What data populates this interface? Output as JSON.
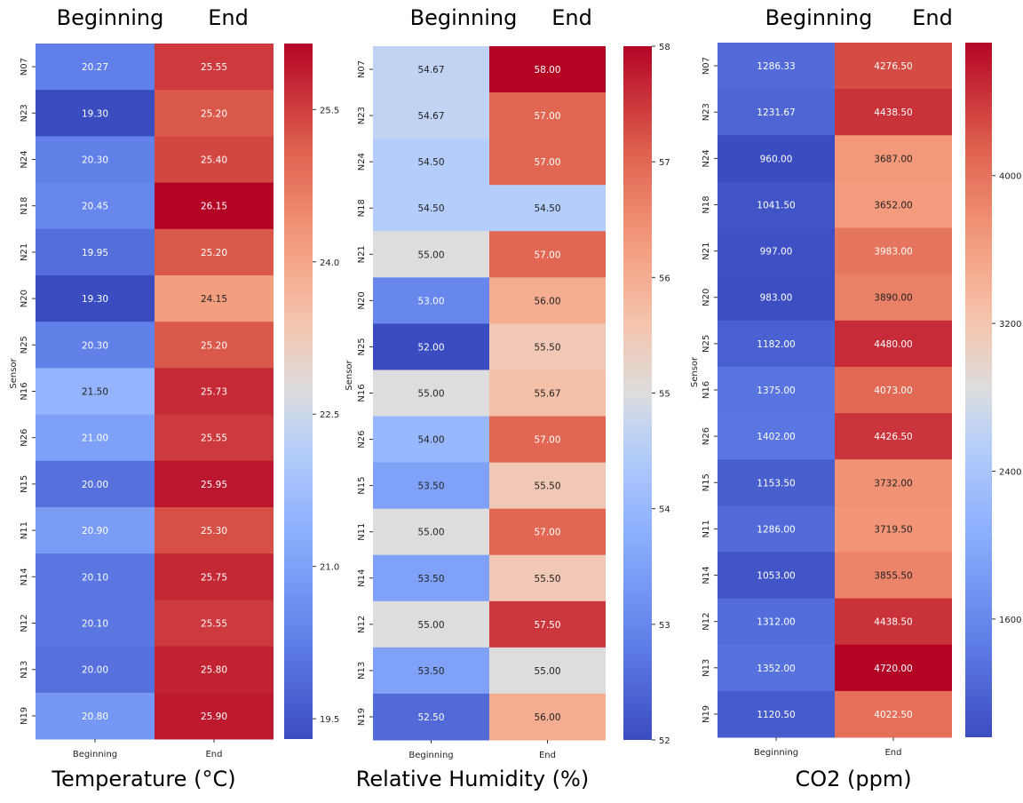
{
  "figure": {
    "columns": [
      "Beginning",
      "End"
    ],
    "axis_label": "Sensor",
    "panel_titles": [
      "Temperature (°C)",
      "Relative Humidity (%)",
      "CO2 (ppm)"
    ],
    "sensors": [
      "N07",
      "N23",
      "N24",
      "N18",
      "N21",
      "N20",
      "N25",
      "N16",
      "N26",
      "N15",
      "N11",
      "N14",
      "N12",
      "N13",
      "N19"
    ]
  },
  "chart_data": [
    {
      "type": "heatmap",
      "title": "Temperature (°C)",
      "xlabel": "",
      "ylabel": "Sensor",
      "x_categories": [
        "Beginning",
        "End"
      ],
      "y_categories": [
        "N07",
        "N23",
        "N24",
        "N18",
        "N21",
        "N20",
        "N25",
        "N16",
        "N26",
        "N15",
        "N11",
        "N14",
        "N12",
        "N13",
        "N19"
      ],
      "values": [
        [
          20.27,
          25.55
        ],
        [
          19.3,
          25.2
        ],
        [
          20.3,
          25.4
        ],
        [
          20.45,
          26.15
        ],
        [
          19.95,
          25.2
        ],
        [
          19.3,
          24.15
        ],
        [
          20.3,
          25.2
        ],
        [
          21.5,
          25.73
        ],
        [
          21.0,
          25.55
        ],
        [
          20.0,
          25.95
        ],
        [
          20.9,
          25.3
        ],
        [
          20.1,
          25.75
        ],
        [
          20.1,
          25.55
        ],
        [
          20.0,
          25.8
        ],
        [
          20.8,
          25.9
        ]
      ],
      "colorbar": {
        "min": 19.3,
        "max": 26.15,
        "ticks": [
          "19.5",
          "21.0",
          "22.5",
          "24.0",
          "25.5"
        ]
      },
      "colormap": "coolwarm",
      "annotation_format": "2dp"
    },
    {
      "type": "heatmap",
      "title": "Relative Humidity (%)",
      "xlabel": "",
      "ylabel": "Sensor",
      "x_categories": [
        "Beginning",
        "End"
      ],
      "y_categories": [
        "N07",
        "N23",
        "N24",
        "N18",
        "N21",
        "N20",
        "N25",
        "N16",
        "N26",
        "N15",
        "N11",
        "N14",
        "N12",
        "N13",
        "N19"
      ],
      "values": [
        [
          54.67,
          58.0
        ],
        [
          54.67,
          57.0
        ],
        [
          54.5,
          57.0
        ],
        [
          54.5,
          54.5
        ],
        [
          55.0,
          57.0
        ],
        [
          53.0,
          56.0
        ],
        [
          52.0,
          55.5
        ],
        [
          55.0,
          55.67
        ],
        [
          54.0,
          57.0
        ],
        [
          53.5,
          55.5
        ],
        [
          55.0,
          57.0
        ],
        [
          53.5,
          55.5
        ],
        [
          55.0,
          57.5
        ],
        [
          53.5,
          55.0
        ],
        [
          52.5,
          56.0
        ]
      ],
      "colorbar": {
        "min": 52,
        "max": 58,
        "ticks": [
          "52",
          "53",
          "54",
          "55",
          "56",
          "57",
          "58"
        ]
      },
      "colormap": "coolwarm",
      "annotation_format": "2dp"
    },
    {
      "type": "heatmap",
      "title": "CO2 (ppm)",
      "xlabel": "",
      "ylabel": "Sensor",
      "x_categories": [
        "Beginning",
        "End"
      ],
      "y_categories": [
        "N07",
        "N23",
        "N24",
        "N18",
        "N21",
        "N20",
        "N25",
        "N16",
        "N26",
        "N15",
        "N11",
        "N14",
        "N12",
        "N13",
        "N19"
      ],
      "values": [
        [
          1286.33,
          4276.5
        ],
        [
          1231.67,
          4438.5
        ],
        [
          960.0,
          3687.0
        ],
        [
          1041.5,
          3652.0
        ],
        [
          997.0,
          3983.0
        ],
        [
          983.0,
          3890.0
        ],
        [
          1182.0,
          4480.0
        ],
        [
          1375.0,
          4073.0
        ],
        [
          1402.0,
          4426.5
        ],
        [
          1153.5,
          3732.0
        ],
        [
          1286.0,
          3719.5
        ],
        [
          1053.0,
          3855.5
        ],
        [
          1312.0,
          4438.5
        ],
        [
          1352.0,
          4720.0
        ],
        [
          1120.5,
          4022.5
        ]
      ],
      "colorbar": {
        "min": 960,
        "max": 4720,
        "ticks": [
          "1600",
          "2400",
          "3200",
          "4000"
        ]
      },
      "colormap": "coolwarm",
      "annotation_format": "2dp"
    }
  ]
}
